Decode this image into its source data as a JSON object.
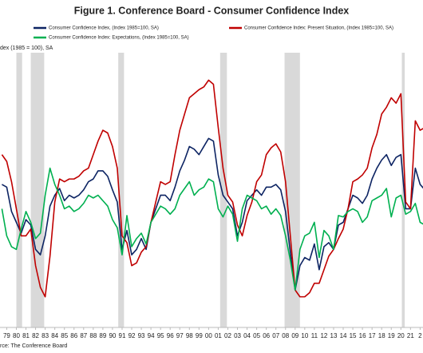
{
  "chart_data": {
    "type": "line",
    "title": "Figure 1. Conference Board - Consumer Confidence Index",
    "y_label": "dex (1985 = 100), SA",
    "source": "rce: The Conference Board",
    "xlim": [
      1978.3,
      2022.3
    ],
    "ylim": [
      0,
      210
    ],
    "xticks": [
      {
        "value": 1979,
        "label": "79"
      },
      {
        "value": 1980,
        "label": "80"
      },
      {
        "value": 1981,
        "label": "81"
      },
      {
        "value": 1982,
        "label": "82"
      },
      {
        "value": 1983,
        "label": "83"
      },
      {
        "value": 1984,
        "label": "84"
      },
      {
        "value": 1985,
        "label": "85"
      },
      {
        "value": 1986,
        "label": "86"
      },
      {
        "value": 1987,
        "label": "87"
      },
      {
        "value": 1988,
        "label": "88"
      },
      {
        "value": 1989,
        "label": "89"
      },
      {
        "value": 1990,
        "label": "90"
      },
      {
        "value": 1991,
        "label": "91"
      },
      {
        "value": 1992,
        "label": "92"
      },
      {
        "value": 1993,
        "label": "93"
      },
      {
        "value": 1994,
        "label": "94"
      },
      {
        "value": 1995,
        "label": "95"
      },
      {
        "value": 1996,
        "label": "96"
      },
      {
        "value": 1997,
        "label": "97"
      },
      {
        "value": 1998,
        "label": "98"
      },
      {
        "value": 1999,
        "label": "99"
      },
      {
        "value": 2000,
        "label": "00"
      },
      {
        "value": 2001,
        "label": "01"
      },
      {
        "value": 2002,
        "label": "02"
      },
      {
        "value": 2003,
        "label": "03"
      },
      {
        "value": 2004,
        "label": "04"
      },
      {
        "value": 2005,
        "label": "05"
      },
      {
        "value": 2006,
        "label": "06"
      },
      {
        "value": 2007,
        "label": "07"
      },
      {
        "value": 2008,
        "label": "08"
      },
      {
        "value": 2009,
        "label": "09"
      },
      {
        "value": 2010,
        "label": "10"
      },
      {
        "value": 2011,
        "label": "11"
      },
      {
        "value": 2012,
        "label": "12"
      },
      {
        "value": 2013,
        "label": "13"
      },
      {
        "value": 2014,
        "label": "14"
      },
      {
        "value": 2015,
        "label": "15"
      },
      {
        "value": 2016,
        "label": "16"
      },
      {
        "value": 2017,
        "label": "17"
      },
      {
        "value": 2018,
        "label": "18"
      },
      {
        "value": 2019,
        "label": "19"
      },
      {
        "value": 2020,
        "label": "20"
      },
      {
        "value": 2021,
        "label": "21"
      },
      {
        "value": 2022,
        "label": "2"
      }
    ],
    "shaded_periods": [
      [
        1980.0,
        1980.6
      ],
      [
        1981.5,
        1982.9
      ],
      [
        1990.6,
        1991.2
      ],
      [
        2001.2,
        2001.9
      ],
      [
        2007.9,
        2009.5
      ],
      [
        2020.1,
        2020.4
      ]
    ],
    "shade_color": "#d9d9d9",
    "x": [
      1978.5,
      1979,
      1979.5,
      1980,
      1980.5,
      1981,
      1981.5,
      1982,
      1982.5,
      1983,
      1983.5,
      1984,
      1984.5,
      1985,
      1985.5,
      1986,
      1986.5,
      1987,
      1987.5,
      1988,
      1988.5,
      1989,
      1989.5,
      1990,
      1990.5,
      1991,
      1991.5,
      1992,
      1992.5,
      1993,
      1993.5,
      1994,
      1994.5,
      1995,
      1995.5,
      1996,
      1996.5,
      1997,
      1997.5,
      1998,
      1998.5,
      1999,
      1999.5,
      2000,
      2000.5,
      2001,
      2001.5,
      2002,
      2002.5,
      2003,
      2003.5,
      2004,
      2004.5,
      2005,
      2005.5,
      2006,
      2006.5,
      2007,
      2007.5,
      2008,
      2008.5,
      2009,
      2009.5,
      2010,
      2010.5,
      2011,
      2011.5,
      2012,
      2012.5,
      2013,
      2013.5,
      2014,
      2014.5,
      2015,
      2015.5,
      2016,
      2016.5,
      2017,
      2017.5,
      2018,
      2018.5,
      2019,
      2019.5,
      2020,
      2020.5,
      2021,
      2021.5,
      2022,
      2022.5
    ],
    "series": [
      {
        "name": "Consumer Confidence Index, (Index 1985=100, SA)",
        "color": "#0d2463",
        "values": [
          108,
          106,
          88,
          80,
          72,
          82,
          78,
          60,
          56,
          70,
          92,
          100,
          105,
          96,
          100,
          98,
          100,
          104,
          110,
          112,
          118,
          118,
          114,
          104,
          95,
          60,
          74,
          56,
          60,
          68,
          60,
          80,
          90,
          100,
          100,
          96,
          106,
          118,
          126,
          136,
          134,
          130,
          136,
          142,
          140,
          115,
          100,
          95,
          90,
          70,
          80,
          96,
          100,
          104,
          100,
          106,
          106,
          108,
          104,
          88,
          58,
          30,
          48,
          54,
          52,
          64,
          45,
          62,
          65,
          60,
          78,
          80,
          90,
          100,
          98,
          94,
          100,
          112,
          120,
          126,
          130,
          122,
          128,
          130,
          90,
          90,
          120,
          108,
          104
        ]
      },
      {
        "name": "Consumer Confidence Index: Present Situation, (Index 1985=100, SA)",
        "color": "#c00000",
        "values": [
          130,
          125,
          110,
          90,
          70,
          70,
          75,
          48,
          32,
          25,
          55,
          95,
          112,
          110,
          112,
          112,
          114,
          118,
          120,
          130,
          140,
          148,
          146,
          136,
          120,
          70,
          65,
          48,
          50,
          58,
          62,
          80,
          95,
          110,
          108,
          110,
          130,
          148,
          160,
          172,
          175,
          178,
          180,
          185,
          182,
          150,
          120,
          100,
          95,
          78,
          70,
          85,
          95,
          110,
          115,
          130,
          135,
          138,
          132,
          110,
          70,
          30,
          25,
          25,
          28,
          35,
          35,
          45,
          55,
          60,
          68,
          75,
          90,
          110,
          112,
          115,
          120,
          135,
          145,
          160,
          165,
          172,
          168,
          175,
          95,
          90,
          155,
          148,
          150
        ]
      },
      {
        "name": "Consumer Confidence Index: Expectations, (Index 1985=100, SA)",
        "color": "#00b050",
        "values": [
          90,
          70,
          62,
          60,
          75,
          88,
          80,
          68,
          72,
          100,
          120,
          108,
          100,
          90,
          92,
          88,
          90,
          94,
          100,
          98,
          100,
          96,
          92,
          82,
          76,
          56,
          85,
          62,
          68,
          72,
          64,
          80,
          86,
          92,
          90,
          86,
          90,
          100,
          105,
          110,
          100,
          104,
          106,
          112,
          110,
          90,
          84,
          92,
          86,
          66,
          90,
          100,
          98,
          96,
          90,
          92,
          86,
          90,
          85,
          70,
          52,
          30,
          60,
          70,
          72,
          80,
          54,
          74,
          70,
          60,
          85,
          84,
          88,
          90,
          88,
          80,
          84,
          96,
          98,
          100,
          105,
          84,
          98,
          100,
          86,
          88,
          94,
          80,
          78
        ]
      }
    ]
  }
}
